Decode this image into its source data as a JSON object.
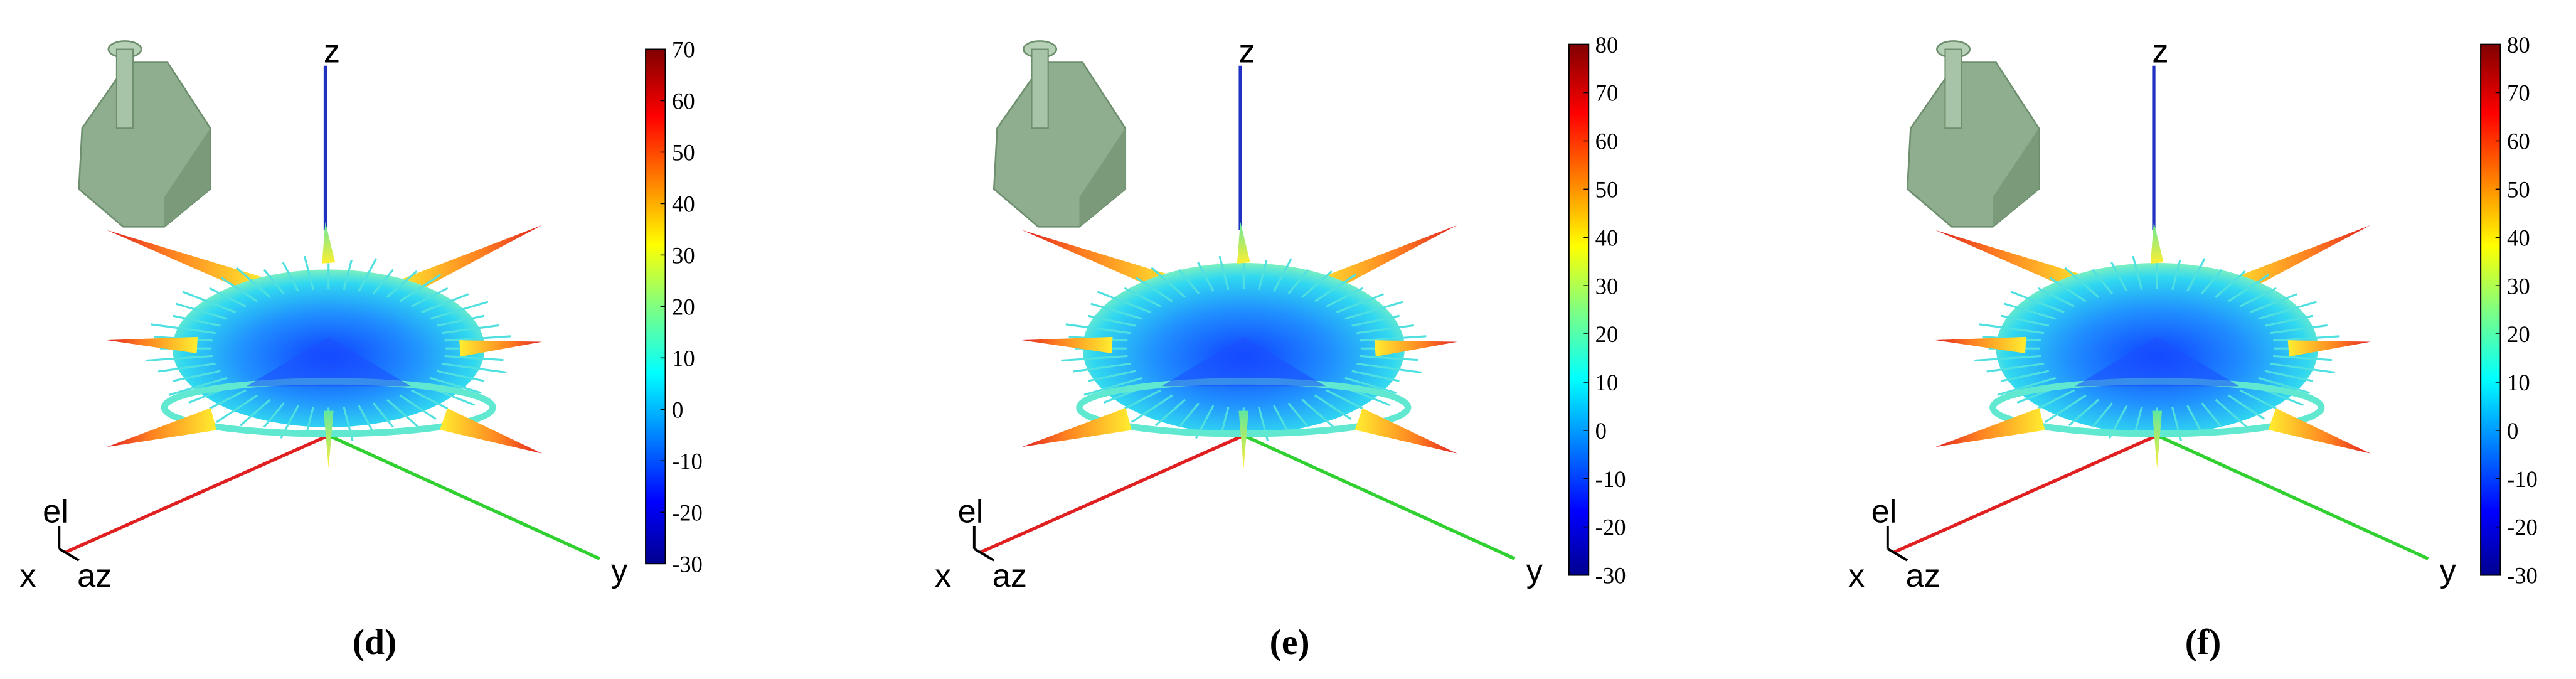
{
  "panels": [
    {
      "label": "(d)",
      "axes": {
        "x": "x",
        "y": "y",
        "z": "z",
        "el": "el",
        "az": "az"
      },
      "colorbar": {
        "lim": [
          -30,
          70
        ],
        "ticks": [
          -30,
          -20,
          -10,
          0,
          10,
          20,
          30,
          40,
          50,
          60,
          70
        ]
      }
    },
    {
      "label": "(e)",
      "axes": {
        "x": "x",
        "y": "y",
        "z": "z",
        "el": "el",
        "az": "az"
      },
      "colorbar": {
        "lim": [
          -30,
          80
        ],
        "ticks": [
          -30,
          -20,
          -10,
          0,
          10,
          20,
          30,
          40,
          50,
          60,
          70,
          80
        ]
      }
    },
    {
      "label": "(f)",
      "axes": {
        "x": "x",
        "y": "y",
        "z": "z",
        "el": "el",
        "az": "az"
      },
      "colorbar": {
        "lim": [
          -30,
          80
        ],
        "ticks": [
          -30,
          -20,
          -10,
          0,
          10,
          20,
          30,
          40,
          50,
          60,
          70,
          80
        ]
      }
    }
  ]
}
